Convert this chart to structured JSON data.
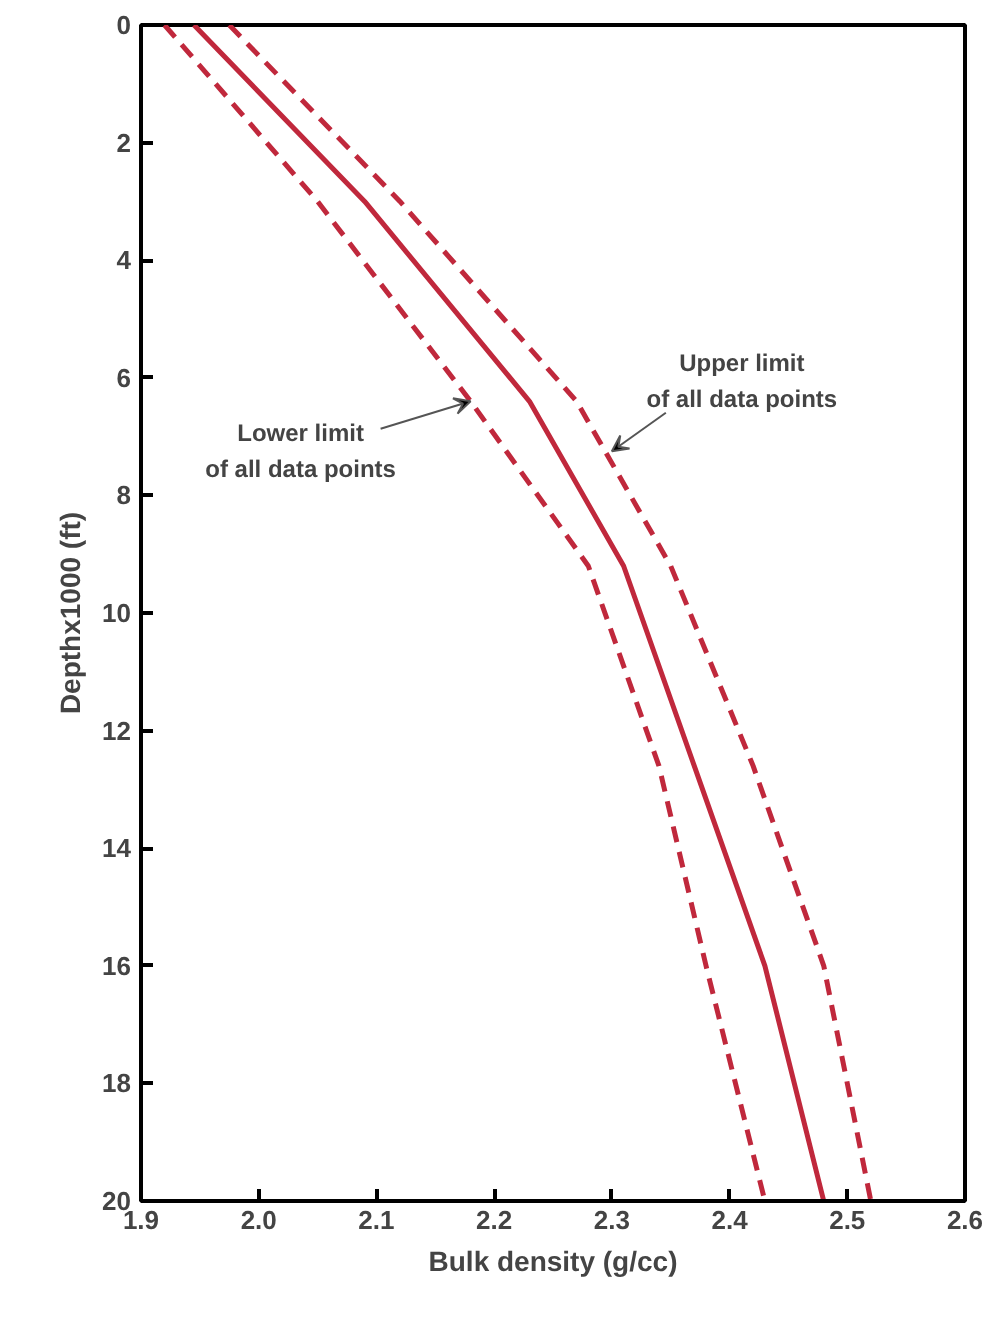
{
  "chart_data": {
    "type": "line",
    "xlabel": "Bulk density (g/cc)",
    "ylabel": "Depthx1000 (ft)",
    "xlim": [
      1.9,
      2.6
    ],
    "ylim": [
      20,
      0
    ],
    "xticks": [
      1.9,
      {
        "value": 2.0,
        "label": "2.0"
      },
      2.1,
      2.2,
      2.3,
      2.4,
      2.5,
      {
        "value": 2.6,
        "label": "2.6"
      }
    ],
    "yticks": [
      0,
      2,
      4,
      6,
      8,
      10,
      12,
      14,
      16,
      18,
      20
    ],
    "grid": false,
    "series": [
      {
        "color": "#c0283c",
        "line_style": "dashed",
        "x": [
          1.92,
          2.05,
          2.18,
          2.28,
          2.34,
          2.38,
          2.43
        ],
        "values": [
          0,
          3,
          6.4,
          9.2,
          12.6,
          16,
          20
        ]
      },
      {
        "color": "#c0283c",
        "line_style": "solid",
        "x": [
          1.945,
          2.09,
          2.23,
          2.31,
          2.37,
          2.43,
          2.48
        ],
        "values": [
          0,
          3,
          6.4,
          9.2,
          12.6,
          16,
          20
        ]
      },
      {
        "color": "#c0283c",
        "line_style": "dashed",
        "x": [
          1.975,
          2.12,
          2.27,
          2.35,
          2.42,
          2.48,
          2.52
        ],
        "values": [
          0,
          3,
          6.4,
          9.2,
          12.6,
          16,
          20
        ]
      }
    ],
    "annotations": [
      {
        "text": "Upper limit\nof all data points",
        "x": 2.3,
        "y": 7.25
      },
      {
        "text": "Lower limit\nof all data points",
        "x": 2.18,
        "y": 6.4
      }
    ]
  }
}
